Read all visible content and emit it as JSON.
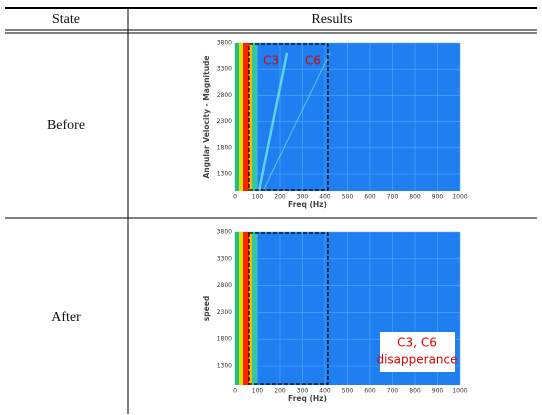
{
  "table": {
    "headers": [
      "State",
      "Results"
    ],
    "rows": [
      {
        "state": "Before",
        "plot": {
          "y_label": "Angular Velocity - Magnitude",
          "x_label": "Freq (Hz)",
          "yticks": [
            3800,
            3300,
            2800,
            2300,
            1800,
            1300
          ],
          "xticks": [
            0,
            100,
            200,
            300,
            400,
            500,
            600,
            700,
            800,
            900,
            1000
          ],
          "annotations": [
            "C3",
            "C6"
          ]
        }
      },
      {
        "state": "After",
        "plot": {
          "y_label": "speed",
          "x_label": "Freq (Hz)",
          "yticks": [
            3800,
            3300,
            2800,
            2300,
            1800,
            1300
          ],
          "xticks": [
            0,
            100,
            200,
            300,
            400,
            500,
            600,
            700,
            800,
            900,
            1000
          ],
          "annotations": [
            "C3, C6",
            "disapperance"
          ]
        }
      }
    ]
  }
}
